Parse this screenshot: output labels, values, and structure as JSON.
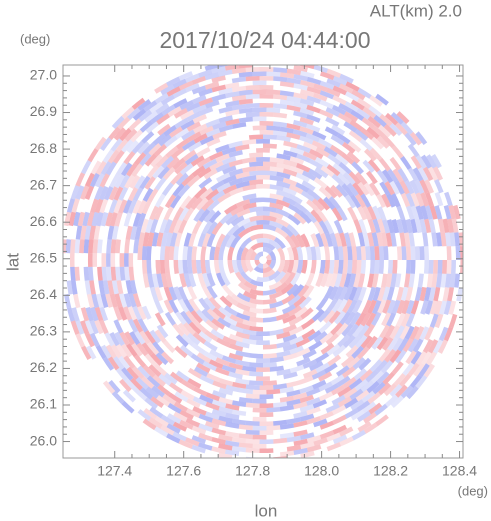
{
  "chart_data": {
    "type": "radar_ppi",
    "title": "2017/10/24 04:44:00",
    "annotation": "ALT(km) 2.0",
    "xlabel": "lon",
    "ylabel": "lat",
    "x_unit": "(deg)",
    "y_unit": "(deg)",
    "xlim": [
      127.25,
      128.41
    ],
    "ylim": [
      25.955,
      27.03
    ],
    "xticks": [
      127.4,
      127.6,
      127.8,
      {
        "value": 128,
        "label": "128.0"
      },
      128.2,
      128.4
    ],
    "yticks": [
      {
        "value": 26,
        "label": "26.0"
      },
      26.1,
      26.2,
      26.3,
      26.4,
      26.5,
      26.6,
      26.7,
      26.8,
      26.9,
      {
        "value": 27,
        "label": "27.0"
      }
    ]
  }
}
